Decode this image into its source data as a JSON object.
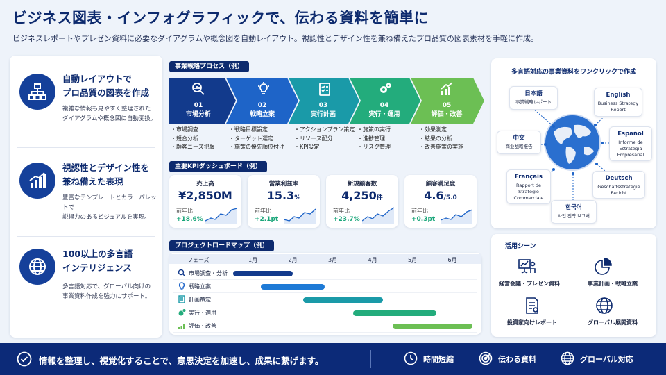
{
  "header": {
    "title": "ビジネス図表・インフォグラフィックで、伝わる資料を簡単に",
    "subtitle": "ビジネスレポートやプレゼン資料に必要なダイアグラムや概念図を自動レイアウト。視認性とデザイン性を兼ね備えたプロ品質の図表素材を手軽に作成。"
  },
  "features": [
    {
      "title": "自動レイアウトで\nプロ品質の図表を作成",
      "desc": "複雑な情報も見やすく整理された\nダイアグラムや概念図に自動変換。",
      "icon": "org-chart-icon"
    },
    {
      "title": "視認性とデザイン性を\n兼ね備えた表現",
      "desc": "豊富なテンプレートとカラーパレットで\n説得力のあるビジュアルを実現。",
      "icon": "bar-chart-icon"
    },
    {
      "title": "100以上の多言語\nインテリジェンス",
      "desc": "多言語対応で、グローバル向けの\n事業資料作成を強力にサポート。",
      "icon": "globe-icon"
    }
  ],
  "process": {
    "tag": "事業戦略プロセス（例）",
    "steps": [
      {
        "num": "01",
        "label": "市場分析",
        "color": "#123a8c",
        "icon": "magnifier-chart-icon",
        "bullets": [
          "市場調査",
          "競合分析",
          "顧客ニーズ把握"
        ]
      },
      {
        "num": "02",
        "label": "戦略立案",
        "color": "#1e64c8",
        "icon": "lightbulb-icon",
        "bullets": [
          "戦略目標設定",
          "ターゲット選定",
          "施策の優先順位付け"
        ]
      },
      {
        "num": "03",
        "label": "実行計画",
        "color": "#1a9aa8",
        "icon": "checklist-icon",
        "bullets": [
          "アクションプラン策定",
          "リソース配分",
          "KPI設定"
        ]
      },
      {
        "num": "04",
        "label": "実行・運用",
        "color": "#23ac7c",
        "icon": "gears-icon",
        "bullets": [
          "施策の実行",
          "進捗管理",
          "リスク管理"
        ]
      },
      {
        "num": "05",
        "label": "評価・改善",
        "color": "#6cbf54",
        "icon": "growth-chart-icon",
        "bullets": [
          "効果測定",
          "結果の分析",
          "改善施策の実施"
        ]
      }
    ]
  },
  "kpi": {
    "tag": "主要KPIダッシュボード（例）",
    "cards": [
      {
        "label": "売上高",
        "value": "¥2,850M",
        "unit": "",
        "compare": "前年比",
        "delta": "+18.6%"
      },
      {
        "label": "営業利益率",
        "value": "15.3",
        "unit": "%",
        "compare": "前年比",
        "delta": "+2.1pt"
      },
      {
        "label": "新規顧客数",
        "value": "4,250",
        "unit": "件",
        "compare": "前年比",
        "delta": "+23.7%"
      },
      {
        "label": "顧客満足度",
        "value": "4.6",
        "unit": "/5.0",
        "compare": "前年比",
        "delta": "+0.3pt"
      }
    ]
  },
  "roadmap": {
    "tag": "プロジェクトロードマップ（例）",
    "phase_header": "フェーズ",
    "months": [
      "1月",
      "2月",
      "3月",
      "4月",
      "5月",
      "6月"
    ],
    "rows": [
      {
        "label": "市場調査・分析",
        "color": "#123a8c",
        "start_month": 1.0,
        "end_month": 2.5
      },
      {
        "label": "戦略立案",
        "color": "#1e7ad6",
        "start_month": 1.7,
        "end_month": 3.3
      },
      {
        "label": "計画策定",
        "color": "#1a9aa8",
        "start_month": 2.75,
        "end_month": 4.75
      },
      {
        "label": "実行・適用",
        "color": "#23ac7c",
        "start_month": 4.0,
        "end_month": 6.1
      },
      {
        "label": "評価・改善",
        "color": "#6cbf54",
        "start_month": 5.0,
        "end_month": 7.0
      }
    ]
  },
  "languages": {
    "title": "多言語対応の事業資料をワンクリックで作成",
    "items": [
      {
        "name": "日本語",
        "sample": "事業戦略レポート"
      },
      {
        "name": "English",
        "sample": "Business Strategy Report"
      },
      {
        "name": "中文",
        "sample": "商业战略报告"
      },
      {
        "name": "Español",
        "sample": "Informe de Estrategia Empresarial"
      },
      {
        "name": "Français",
        "sample": "Rapport de Stratégie Commerciale"
      },
      {
        "name": "Deutsch",
        "sample": "Geschäftsstrategie Bericht"
      },
      {
        "name": "한국어",
        "sample": "사업 전략 보고서"
      }
    ]
  },
  "usecases": {
    "title": "活用シーン",
    "items": [
      {
        "label": "経営会議・プレゼン資料",
        "icon": "presentation-icon"
      },
      {
        "label": "事業計画・戦略立案",
        "icon": "pie-chart-icon"
      },
      {
        "label": "投資家向けレポート",
        "icon": "report-icon"
      },
      {
        "label": "グローバル展開資料",
        "icon": "globe-icon"
      }
    ]
  },
  "footer": {
    "message": "情報を整理し、視覚化することで、意思決定を加速し、成果に繋げます。",
    "items": [
      "時間短縮",
      "伝わる資料",
      "グローバル対応"
    ]
  }
}
